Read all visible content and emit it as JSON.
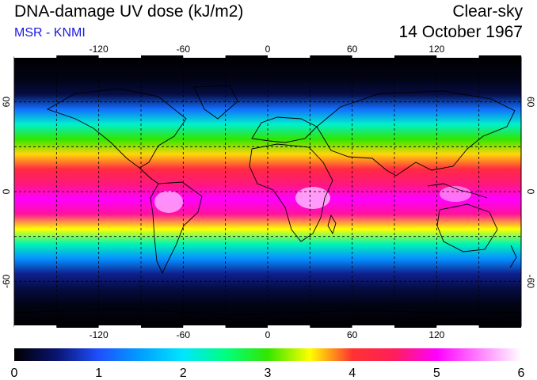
{
  "header": {
    "title": "DNA-damage UV dose (kJ/m2)",
    "source": "MSR - KNMI",
    "sky_condition": "Clear-sky",
    "date": "14 October 1967"
  },
  "axes": {
    "lon_ticks": [
      "-120",
      "-60",
      "0",
      "60",
      "120"
    ],
    "lat_ticks_left": [
      "60",
      "0",
      "-60"
    ],
    "lat_ticks_right": [
      "60",
      "0",
      "-60"
    ]
  },
  "colorbar": {
    "labels": [
      "0",
      "1",
      "2",
      "3",
      "4",
      "5",
      "6"
    ],
    "min": 0,
    "max": 6,
    "unit": "kJ/m2"
  },
  "chart_data": {
    "type": "heatmap",
    "title": "DNA-damage UV dose (kJ/m2)",
    "xlabel": "",
    "ylabel": "",
    "xlim": [
      -180,
      180
    ],
    "ylim": [
      -90,
      90
    ],
    "grid": true,
    "lat_profile": [
      {
        "lat": 90,
        "value": 0.0
      },
      {
        "lat": 75,
        "value": 0.1
      },
      {
        "lat": 65,
        "value": 0.3
      },
      {
        "lat": 55,
        "value": 1.2
      },
      {
        "lat": 45,
        "value": 2.2
      },
      {
        "lat": 35,
        "value": 3.0
      },
      {
        "lat": 25,
        "value": 3.6
      },
      {
        "lat": 15,
        "value": 4.2
      },
      {
        "lat": 5,
        "value": 4.6
      },
      {
        "lat": -5,
        "value": 5.0
      },
      {
        "lat": -15,
        "value": 4.7
      },
      {
        "lat": -25,
        "value": 3.5
      },
      {
        "lat": -35,
        "value": 2.3
      },
      {
        "lat": -45,
        "value": 1.4
      },
      {
        "lat": -55,
        "value": 0.6
      },
      {
        "lat": -65,
        "value": 0.3
      },
      {
        "lat": -75,
        "value": 0.1
      },
      {
        "lat": -90,
        "value": 0.0
      }
    ],
    "colorbar_stops": [
      {
        "value": 0,
        "color": "#000000"
      },
      {
        "value": 0.5,
        "color": "#0a1470"
      },
      {
        "value": 1,
        "color": "#1e50ff"
      },
      {
        "value": 1.5,
        "color": "#00a0ff"
      },
      {
        "value": 2,
        "color": "#00e6ff"
      },
      {
        "value": 2.5,
        "color": "#00ff80"
      },
      {
        "value": 3,
        "color": "#32e600"
      },
      {
        "value": 3.5,
        "color": "#ffff00"
      },
      {
        "value": 4,
        "color": "#ff3232"
      },
      {
        "value": 4.5,
        "color": "#ff1e5a"
      },
      {
        "value": 5,
        "color": "#ff00ff"
      },
      {
        "value": 6,
        "color": "#ffffff"
      }
    ]
  }
}
